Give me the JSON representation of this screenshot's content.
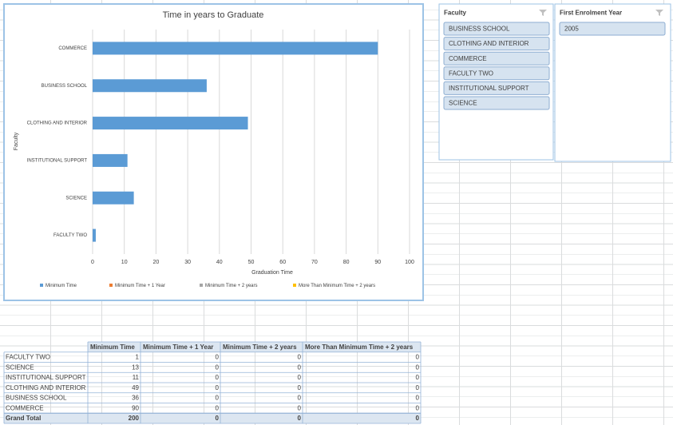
{
  "chart_data": {
    "type": "bar",
    "title": "Time in years to Graduate",
    "x_label": "Graduation Time",
    "y_label": "Faculty",
    "categories": [
      "FACULTY TWO",
      "SCIENCE",
      "INSTITUTIONAL SUPPORT",
      "CLOTHING AND INTERIOR",
      "BUSINESS SCHOOL",
      "COMMERCE"
    ],
    "series": [
      {
        "name": "Minimum Time",
        "color": "#5b9bd5",
        "values": [
          1,
          13,
          11,
          49,
          36,
          90
        ]
      },
      {
        "name": "Minimum Time + 1 Year",
        "color": "#ed7d31",
        "values": [
          0,
          0,
          0,
          0,
          0,
          0
        ]
      },
      {
        "name": "Minimum Time + 2 years",
        "color": "#a5a5a5",
        "values": [
          0,
          0,
          0,
          0,
          0,
          0
        ]
      },
      {
        "name": "More Than Minimum Time + 2 years",
        "color": "#ffc000",
        "values": [
          0,
          0,
          0,
          0,
          0,
          0
        ]
      }
    ],
    "xlim": [
      0,
      100
    ],
    "xticks": [
      0,
      10,
      20,
      30,
      40,
      50,
      60,
      70,
      80,
      90,
      100
    ],
    "grid": true,
    "legend": "bottom"
  },
  "slicers": [
    {
      "title": "Faculty",
      "items": [
        "BUSINESS SCHOOL",
        "CLOTHING AND INTERIOR",
        "COMMERCE",
        "FACULTY TWO",
        "INSTITUTIONAL SUPPORT",
        "SCIENCE"
      ]
    },
    {
      "title": "First Enrolment Year",
      "items": [
        "2005"
      ]
    }
  ],
  "table": {
    "header": [
      "Minimum Time",
      "Minimum Time + 1 Year",
      "Minimum Time + 2 years",
      "More Than Minimum Time + 2 years"
    ],
    "rows": [
      [
        "FACULTY TWO",
        1,
        0,
        0,
        0
      ],
      [
        "SCIENCE",
        13,
        0,
        0,
        0
      ],
      [
        "INSTITUTIONAL SUPPORT",
        11,
        0,
        0,
        0
      ],
      [
        "CLOTHING AND INTERIOR",
        49,
        0,
        0,
        0
      ],
      [
        "BUSINESS SCHOOL",
        36,
        0,
        0,
        0
      ],
      [
        "COMMERCE",
        90,
        0,
        0,
        0
      ],
      [
        "Grand Total",
        200,
        0,
        0,
        0
      ]
    ]
  }
}
